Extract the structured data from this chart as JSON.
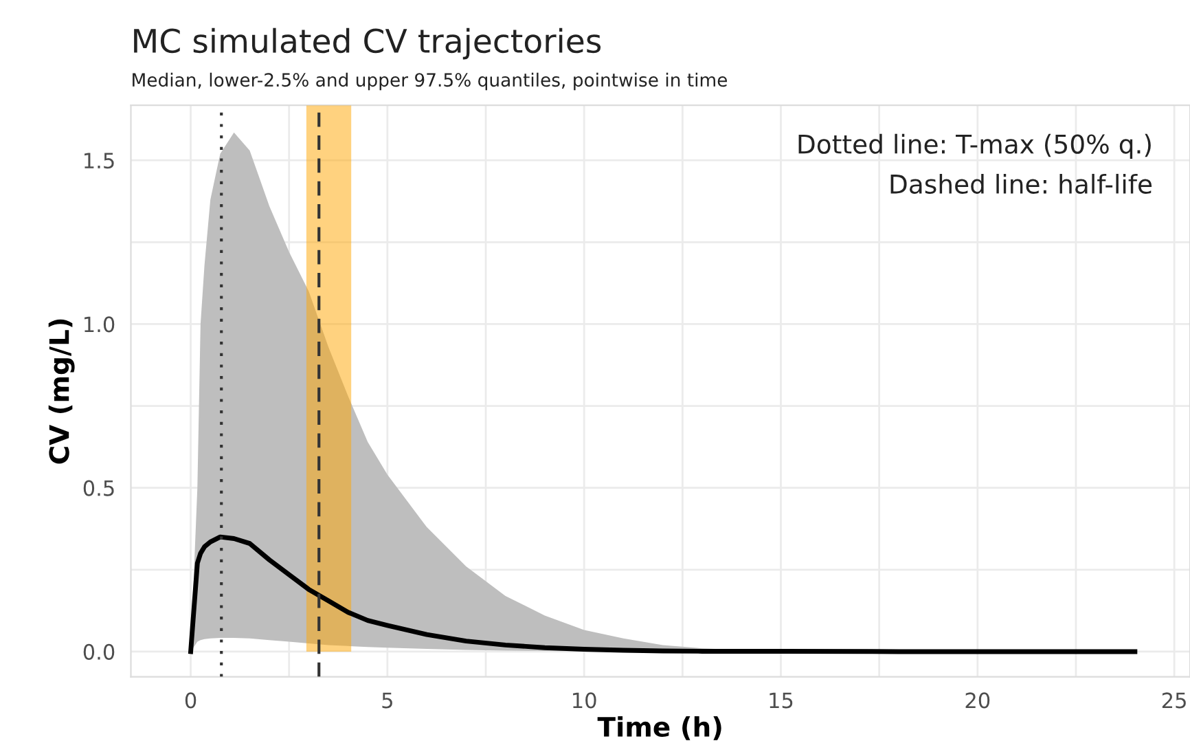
{
  "chart_data": {
    "type": "line",
    "title": "MC simulated CV trajectories",
    "subtitle": "Median, lower-2.5% and upper 97.5% quantiles, pointwise in time",
    "xlabel": "Time (h)",
    "ylabel": "CV (mg/L)",
    "annotations": [
      "Dotted line: T-max (50% q.)",
      "Dashed line: half-life"
    ],
    "series": [
      {
        "color": "#000000",
        "x": [
          0,
          0.17,
          0.25,
          0.35,
          0.5,
          0.75,
          1.1,
          1.5,
          2,
          2.5,
          3,
          3.5,
          4,
          4.5,
          5,
          6,
          7,
          8,
          9,
          10,
          11,
          12,
          13,
          14,
          15,
          18,
          21,
          24
        ],
        "values": [
          0,
          0.27,
          0.3,
          0.32,
          0.335,
          0.35,
          0.345,
          0.33,
          0.28,
          0.235,
          0.19,
          0.155,
          0.12,
          0.095,
          0.08,
          0.052,
          0.032,
          0.02,
          0.012,
          0.007,
          0.004,
          0.002,
          0.001,
          0.001,
          0.001,
          0,
          0,
          0
        ],
        "lower": [
          0,
          0.03,
          0.035,
          0.038,
          0.04,
          0.042,
          0.042,
          0.04,
          0.035,
          0.03,
          0.025,
          0.02,
          0.017,
          0.014,
          0.012,
          0.008,
          0.005,
          0.003,
          0.002,
          0.001,
          0,
          0,
          0,
          0,
          0,
          0,
          0,
          0
        ],
        "upper": [
          0,
          0.5,
          1.0,
          1.18,
          1.38,
          1.52,
          1.585,
          1.53,
          1.36,
          1.22,
          1.1,
          0.93,
          0.78,
          0.64,
          0.54,
          0.38,
          0.26,
          0.17,
          0.11,
          0.066,
          0.04,
          0.02,
          0.01,
          0.005,
          0.002,
          0,
          0,
          0
        ]
      }
    ],
    "ref_lines": [
      {
        "axis": "x",
        "value": 0.78,
        "label": null,
        "color": "#333333",
        "line_style": "dotted"
      },
      {
        "axis": "x",
        "value": 3.26,
        "label": null,
        "color": "#333333",
        "line_style": "dashed"
      }
    ],
    "bands": [
      {
        "axis": "x",
        "from": 2.94,
        "to": 4.08,
        "label": null,
        "color": "#ffa500"
      }
    ],
    "xlim": [
      -1.52,
      25.4
    ],
    "ylim": [
      -0.077,
      1.668
    ],
    "xticks": [
      0,
      {
        "value": 2.5,
        "label": null
      },
      5,
      {
        "value": 7.5,
        "label": null
      },
      10,
      {
        "value": 12.5,
        "label": null
      },
      15,
      {
        "value": 17.5,
        "label": null
      },
      20,
      {
        "value": 22.5,
        "label": null
      },
      25
    ],
    "yticks": [
      {
        "value": 0,
        "label": "0.0"
      },
      {
        "value": 0.25,
        "label": null
      },
      {
        "value": 0.5,
        "label": "0.5"
      },
      {
        "value": 0.75,
        "label": null
      },
      {
        "value": 1.0,
        "label": "1.0"
      },
      {
        "value": 1.25,
        "label": null
      },
      {
        "value": 1.5,
        "label": "1.5"
      }
    ],
    "grid": true,
    "marker": "none",
    "line_style": "solid"
  }
}
